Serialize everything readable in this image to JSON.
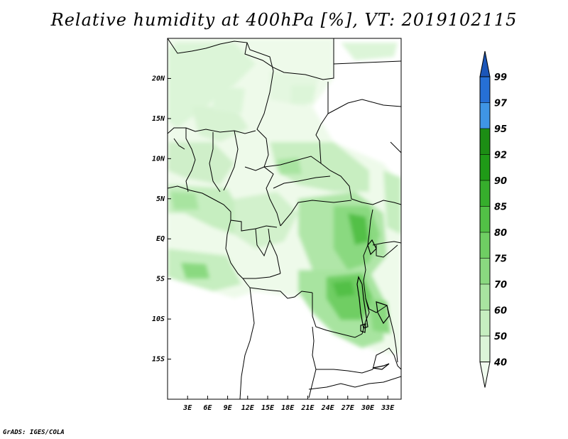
{
  "title": "Relative humidity at 400hPa [%], VT: 2019102115",
  "credit": "GrADS: IGES/COLA",
  "map": {
    "lat_labels": [
      "20N",
      "15N",
      "10N",
      "5N",
      "EQ",
      "5S",
      "10S",
      "15S"
    ],
    "lat_values": [
      20,
      15,
      10,
      5,
      0,
      -5,
      -10,
      -15
    ],
    "lon_labels": [
      "3E",
      "6E",
      "9E",
      "12E",
      "15E",
      "18E",
      "21E",
      "24E",
      "27E",
      "30E",
      "33E"
    ],
    "lon_values": [
      3,
      6,
      9,
      12,
      15,
      18,
      21,
      24,
      27,
      30,
      33
    ],
    "lon_range": [
      0,
      35
    ],
    "lat_range": [
      -20,
      25
    ],
    "border_color": "#000000"
  },
  "colorbar": {
    "levels": [
      "40",
      "50",
      "60",
      "70",
      "75",
      "80",
      "85",
      "90",
      "92",
      "95",
      "97",
      "99"
    ],
    "colors": [
      "#f0fbee",
      "#dcf5d8",
      "#c6eec0",
      "#a8e4a0",
      "#8ad980",
      "#6fce63",
      "#52c046",
      "#36ae2c",
      "#1f9a17",
      "#1c8d14",
      "#3f95e5",
      "#2670d6",
      "#1c56b8"
    ]
  }
}
